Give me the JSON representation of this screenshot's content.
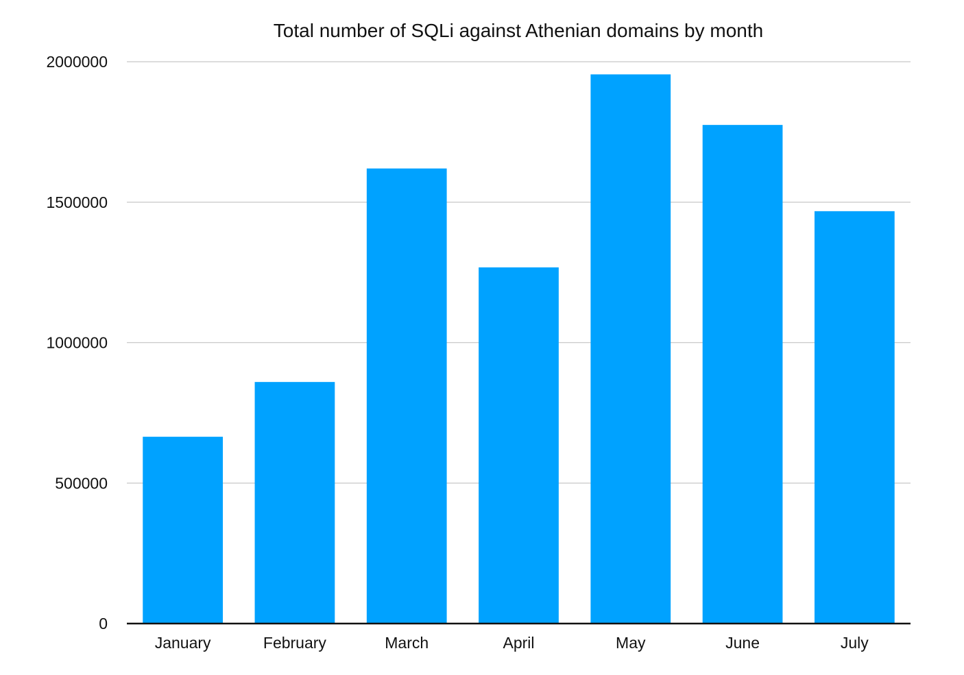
{
  "chart_data": {
    "type": "bar",
    "title": "Total number of SQLi against Athenian domains by month",
    "xlabel": "",
    "ylabel": "",
    "categories": [
      "January",
      "February",
      "March",
      "April",
      "May",
      "June",
      "July"
    ],
    "values": [
      665000,
      860000,
      1620000,
      1268000,
      1955000,
      1775000,
      1468000
    ],
    "ylim": [
      0,
      2000000
    ],
    "yticks": [
      0,
      500000,
      1000000,
      1500000,
      2000000
    ],
    "ytick_labels": [
      "0",
      "500000",
      "1000000",
      "1500000",
      "2000000"
    ],
    "grid": true,
    "legend": "none",
    "bar_color": "#00a2ff",
    "grid_color": "#c8c8c8",
    "axis_color": "#111111"
  }
}
